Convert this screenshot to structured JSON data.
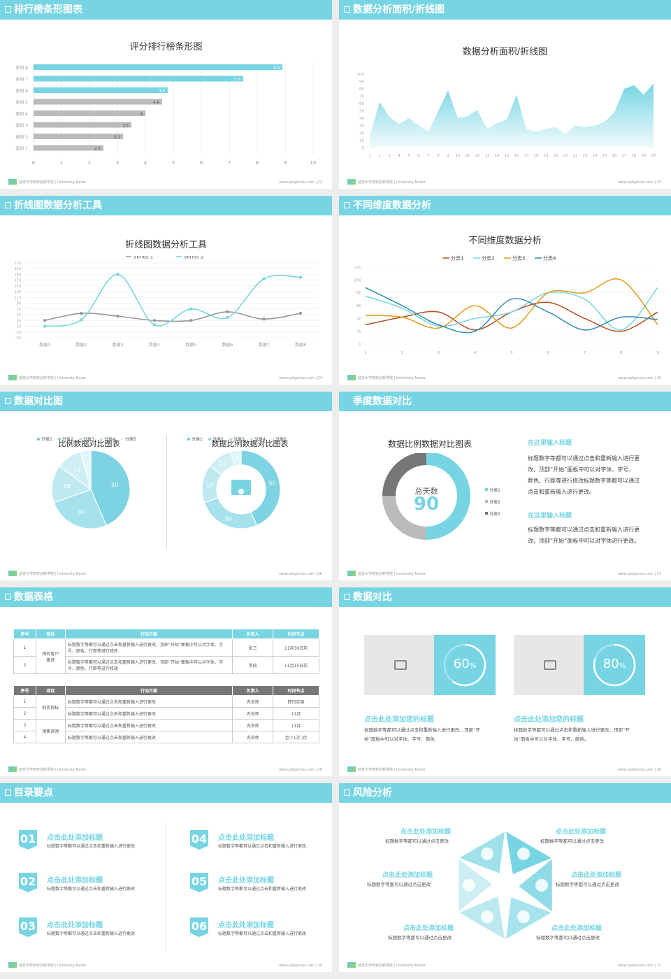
{
  "footer": {
    "school": "延安大学西安创新学院 | University Name",
    "site": "www.pptgenius.com"
  },
  "colors": {
    "accent": "#77d5e3",
    "grey": "#999999",
    "red": "#b94d20",
    "orange": "#e09b20",
    "blue": "#2d8bb0"
  },
  "slide1": {
    "header": "排行榜条形图表",
    "page": "22",
    "chart_data": {
      "type": "bar",
      "title": "评分排行榜条形图",
      "categories": [
        "系列 8",
        "系列 7",
        "系列 6",
        "系列 5",
        "类别 4",
        "类别 3",
        "类别 2",
        "类别 1"
      ],
      "values": [
        8.9,
        7.5,
        4.8,
        4.6,
        4,
        3.5,
        3.2,
        2.5
      ],
      "highlight": [
        true,
        true,
        true,
        false,
        false,
        false,
        false,
        false
      ],
      "xlim": [
        0,
        10
      ],
      "xticks": [
        "0",
        "1",
        "2",
        "3",
        "4",
        "5",
        "6",
        "7",
        "8",
        "9",
        "10"
      ]
    }
  },
  "slide2": {
    "header": "数据分析面积/折线图",
    "page": "23",
    "chart_data": {
      "type": "area",
      "title": "数据分析面积/折线图",
      "x": [
        1,
        2,
        3,
        4,
        5,
        6,
        7,
        8,
        9,
        10,
        11,
        12,
        13,
        14,
        15,
        16,
        17,
        18,
        19,
        20,
        21,
        22,
        23,
        24,
        25,
        26,
        27,
        28,
        29,
        30
      ],
      "values": [
        15,
        62,
        42,
        32,
        40,
        30,
        22,
        50,
        78,
        40,
        43,
        51,
        25,
        33,
        38,
        72,
        25,
        22,
        25,
        28,
        18,
        30,
        28,
        30,
        35,
        48,
        80,
        85,
        72,
        87
      ],
      "ylim": [
        0,
        100
      ],
      "yticks": [
        "0",
        "10",
        "20",
        "30",
        "40",
        "50",
        "60",
        "70",
        "80",
        "90",
        "100"
      ]
    }
  },
  "slide3": {
    "header": "折线图数据分析工具",
    "page": "24",
    "chart_data": {
      "type": "line",
      "title": "折线图数据分析工具",
      "categories": [
        "数据1",
        "数据2",
        "数据3",
        "数据4",
        "数据5",
        "数据6",
        "数据7",
        "数据8"
      ],
      "series": [
        {
          "name": "Series 1",
          "values": [
            30,
            55,
            45,
            30,
            30,
            60,
            35,
            55
          ]
        },
        {
          "name": "Series 2",
          "values": [
            10,
            32,
            190,
            15,
            70,
            40,
            175,
            180
          ]
        }
      ],
      "ylim": [
        -30,
        230
      ],
      "yticks": [
        "230",
        "210",
        "190",
        "170",
        "150",
        "130",
        "110",
        "90",
        "70",
        "50",
        "30",
        "10",
        "-10",
        "-30"
      ]
    }
  },
  "slide4": {
    "header": "不同维度数据分析",
    "page": "25",
    "chart_data": {
      "type": "line",
      "title": "不同维度数据分析",
      "x": [
        1,
        2,
        3,
        4,
        5,
        6,
        7,
        8,
        9
      ],
      "series": [
        {
          "name": "分类1",
          "values": [
            30,
            42,
            50,
            22,
            50,
            65,
            40,
            20,
            50
          ]
        },
        {
          "name": "分类2",
          "values": [
            75,
            56,
            28,
            40,
            50,
            80,
            70,
            22,
            88
          ]
        },
        {
          "name": "分类3",
          "values": [
            45,
            42,
            25,
            60,
            25,
            80,
            80,
            100,
            30
          ]
        },
        {
          "name": "分类4",
          "values": [
            88,
            60,
            30,
            20,
            70,
            50,
            22,
            42,
            38
          ]
        }
      ],
      "ylim": [
        0,
        120
      ],
      "yticks": [
        "0",
        "20",
        "40",
        "60",
        "80",
        "100",
        "120"
      ]
    }
  },
  "slide5": {
    "header": "数据对比图",
    "page": "26",
    "pie1": {
      "type": "pie",
      "title": "比例数据对比图表",
      "legend": [
        "分类1",
        "分类2",
        "分类3",
        "分类4",
        "分类5"
      ],
      "values": [
        50,
        30,
        18,
        12,
        5
      ],
      "labels": [
        "50",
        "30",
        "18",
        "12",
        "5"
      ]
    },
    "pie2": {
      "type": "pie",
      "title": "数据比例数据对比图表",
      "legend": [
        "分类1",
        "分类2",
        "分类3",
        "分类4",
        "分类5"
      ],
      "values": [
        50,
        30,
        18,
        12,
        5
      ],
      "labels": [
        "50",
        "30",
        "18",
        "12",
        "5"
      ]
    }
  },
  "slide6": {
    "header": "季度数据对比",
    "page": "27",
    "chart_title": "数据比例数据对比图表",
    "donut_label": "总天数",
    "donut_value": "90",
    "chart_data": {
      "type": "pie",
      "legend": [
        "分类1",
        "分类2",
        "分类3"
      ],
      "values": [
        50,
        25,
        25
      ]
    },
    "h1": "在这里输入标题",
    "p1": [
      "标题数字等都可以通过点击和重新输入进行更",
      "改，顶部“开始”面板中可以对字体、字号、",
      "颜色、行距等进行修改标题数字等都可以通过",
      "点击和重新输入进行更改。"
    ],
    "h2": "在这里输入标题",
    "p2": [
      "标题数字等都可以通过点击和重新输入进行更",
      "改，顶部“开始”面板中可以对字体进行更改。"
    ]
  },
  "slide7": {
    "header": "数据表格",
    "page": "28",
    "t1": {
      "head": [
        "序号",
        "项目",
        "行动方案",
        "负责人",
        "时间节点"
      ],
      "group": "保有客户\n跟进",
      "rows": [
        [
          "1",
          "标题数字等都可以通过点击和重新输入进行更改，顶部“开始”面板中可以对字体、字号、颜色、行距等进行修改",
          "张三",
          "11月30日前"
        ],
        [
          "2",
          "标题数字等都可以通过点击和重新输入进行更改，顶部“开始”面板中可以对字体、字号、颜色、行距等进行修改",
          "李四",
          "11月15日前"
        ]
      ]
    },
    "t2": {
      "head": [
        "序号",
        "项目",
        "行动方案",
        "负责人",
        "时间节点"
      ],
      "group1": "财务指标",
      "group2": "销售预测",
      "rows": [
        [
          "1",
          "标题数字等都可以通过点击和重新输入进行更改",
          "内训师",
          "即日实施"
        ],
        [
          "2",
          "标题数字等都可以通过点击和重新输入进行更改",
          "内训师",
          "11月"
        ],
        [
          "3",
          "标题数字等都可以通过点击和重新输入进行更改",
          "内训师",
          "11月"
        ],
        [
          "4",
          "标题数字等都可以通过点击和重新输入进行更改",
          "内训师",
          "至少1次 /月"
        ]
      ]
    }
  },
  "slide8": {
    "header": "数据对比",
    "page": "29",
    "cards": [
      {
        "pct": 60,
        "label": "60",
        "unit": "%",
        "title": "点击此处添加您的标题",
        "text": [
          "标题数字等都可以通过点击和重新输入进行更改，顶部“开",
          "始”面板中可以对字体、字号、颜色"
        ]
      },
      {
        "pct": 80,
        "label": "80",
        "unit": "%",
        "title": "点击此处添加您的标题",
        "text": [
          "标题数字等都可以通过点击和重新输入进行更改，顶部“开",
          "始”面板中可以对字体、字号、颜色。"
        ]
      }
    ]
  },
  "slide9": {
    "header": "目录要点",
    "page": "30",
    "items": [
      {
        "num": "01",
        "title": "点击此处添加标题",
        "text": "标题数字等都可以通过点击和重新输入进行更改"
      },
      {
        "num": "02",
        "title": "点击此处添加标题",
        "text": "标题数字等都可以通过点击和重新输入进行更改"
      },
      {
        "num": "03",
        "title": "点击此处添加标题",
        "text": "标题数字等都可以通过点击和重新输入进行更改"
      },
      {
        "num": "04",
        "title": "点击此处添加标题",
        "text": "标题数字等都可以通过点击和重新输入进行更改"
      },
      {
        "num": "05",
        "title": "点击此处添加标题",
        "text": "标题数字等都可以通过点击和重新输入进行更改"
      },
      {
        "num": "06",
        "title": "点击此处添加标题",
        "text": "标题数字等都可以通过点击和重新输入进行更改"
      }
    ]
  },
  "slide10": {
    "header": "风险分析",
    "page": "31",
    "items": [
      {
        "title": "点击此处添加标题",
        "text": "标题数字等都可以通过点击更改"
      },
      {
        "title": "点击此处添加标题",
        "text": "标题数字等都可以通过点击更改"
      },
      {
        "title": "点击此处添加标题",
        "text": "标题数字等都可以通过点击更改"
      },
      {
        "title": "点击此处添加标题",
        "text": "标题数字等都可以通过点击更改"
      },
      {
        "title": "点击此处添加标题",
        "text": "标题数字等都可以通过点击更改"
      },
      {
        "title": "点击此处添加标题",
        "text": "标题数字等都可以通过点击更改"
      }
    ],
    "icons": [
      "money-bag-icon",
      "coins-icon",
      "users-icon",
      "pie-chart-icon",
      "building-icon",
      "handshake-icon"
    ]
  }
}
